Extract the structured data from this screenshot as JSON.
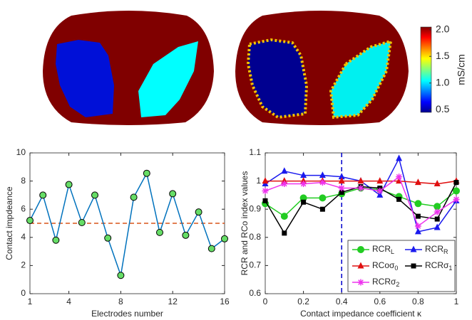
{
  "chart_data": [
    {
      "type": "colorbar",
      "ylabel": "mS/cm",
      "ylim": [
        0.45,
        2.05
      ],
      "yticks": [
        0.5,
        {
          "value": 1,
          "label": "1.0"
        },
        1.5,
        {
          "value": 2,
          "label": "2.0"
        }
      ]
    },
    {
      "type": "line",
      "xlabel": "Electrodes number",
      "ylabel": "Contact impdeance",
      "x": [
        1,
        2,
        3,
        4,
        5,
        6,
        7,
        8,
        9,
        10,
        11,
        12,
        13,
        14,
        15,
        16
      ],
      "values": [
        5.2,
        7.0,
        3.8,
        7.75,
        5.05,
        7.0,
        3.95,
        1.3,
        6.85,
        8.55,
        4.35,
        7.1,
        4.15,
        5.8,
        3.2,
        3.9
      ],
      "color": "#0072bd",
      "marker_color": "#66dd66",
      "hline": 5,
      "hline_color": "#d95319",
      "xlim": [
        1,
        16
      ],
      "xticks": [
        1,
        4,
        8,
        12,
        16
      ],
      "ylim": [
        0,
        10
      ],
      "yticks": [
        0,
        2,
        4,
        6,
        8,
        10
      ]
    },
    {
      "type": "line",
      "xlabel": "Contact impedance coefficient κ",
      "ylabel": "RCR and RCo index values",
      "x": [
        0,
        0.1,
        0.2,
        0.3,
        0.4,
        0.5,
        0.6,
        0.7,
        0.8,
        0.9,
        1
      ],
      "series": [
        {
          "name": "RCRL",
          "color": "#22cc22",
          "marker": "o",
          "values": [
            0.92,
            0.875,
            0.94,
            0.94,
            0.955,
            0.975,
            0.97,
            0.945,
            0.92,
            0.91,
            0.965
          ]
        },
        {
          "name": "RCRR",
          "color": "#1a1aee",
          "marker": "^",
          "values": [
            0.99,
            1.035,
            1.02,
            1.02,
            1.015,
            1.0,
            0.95,
            1.08,
            0.82,
            0.835,
            0.93
          ]
        },
        {
          "name": "RCoσ0",
          "color": "#e01010",
          "marker": "^",
          "values": [
            1.0,
            1.0,
            1.0,
            1.0,
            1.0,
            1.0,
            1.0,
            1.0,
            0.995,
            0.99,
            1.0
          ]
        },
        {
          "name": "RCRσ1",
          "color": "#000000",
          "marker": "s",
          "values": [
            0.93,
            0.815,
            0.925,
            0.9,
            0.96,
            0.98,
            0.975,
            0.935,
            0.875,
            0.865,
            0.995
          ]
        },
        {
          "name": "RCRσ2",
          "color": "#ee33ee",
          "marker": "*",
          "values": [
            0.965,
            0.99,
            0.99,
            0.995,
            0.975,
            0.975,
            0.965,
            1.015,
            0.84,
            0.89,
            0.935
          ]
        }
      ],
      "vline": 0.4,
      "vline_color": "#0000cc",
      "xlim": [
        0,
        1
      ],
      "xticks": [
        0,
        0.2,
        0.4,
        0.6,
        0.8,
        1
      ],
      "ylim": [
        0.6,
        1.1
      ],
      "yticks": [
        0.6,
        0.7,
        0.8,
        0.9,
        1,
        1.1
      ]
    }
  ]
}
